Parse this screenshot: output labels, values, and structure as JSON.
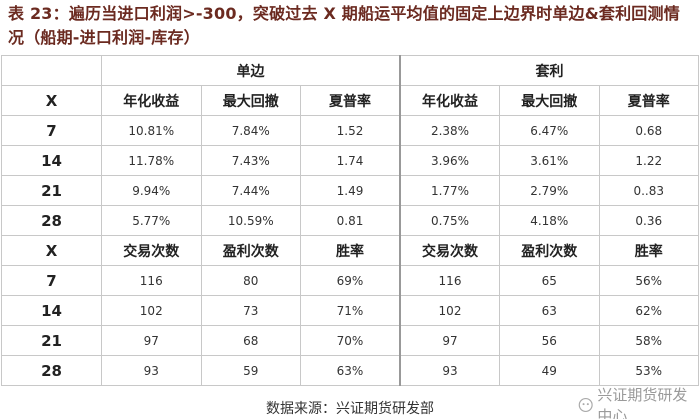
{
  "title": "表 23：遍历当进口利润>-300，突破过去 X 期船运平均值的固定上边界时单边&套利回测情况（船期-进口利润-库存）",
  "table": {
    "groups": [
      "单边",
      "套利"
    ],
    "sections": [
      {
        "header": [
          "X",
          "年化收益",
          "最大回撤",
          "夏普率",
          "年化收益",
          "最大回撤",
          "夏普率"
        ],
        "rows": [
          [
            "7",
            "10.81%",
            "7.84%",
            "1.52",
            "2.38%",
            "6.47%",
            "0.68"
          ],
          [
            "14",
            "11.78%",
            "7.43%",
            "1.74",
            "3.96%",
            "3.61%",
            "1.22"
          ],
          [
            "21",
            "9.94%",
            "7.44%",
            "1.49",
            "1.77%",
            "2.79%",
            "0..83"
          ],
          [
            "28",
            "5.77%",
            "10.59%",
            "0.81",
            "0.75%",
            "4.18%",
            "0.36"
          ]
        ]
      },
      {
        "header": [
          "X",
          "交易次数",
          "盈利次数",
          "胜率",
          "交易次数",
          "盈利次数",
          "胜率"
        ],
        "rows": [
          [
            "7",
            "116",
            "80",
            "69%",
            "116",
            "65",
            "56%"
          ],
          [
            "14",
            "102",
            "73",
            "71%",
            "102",
            "63",
            "62%"
          ],
          [
            "21",
            "97",
            "68",
            "70%",
            "97",
            "56",
            "58%"
          ],
          [
            "28",
            "93",
            "59",
            "63%",
            "93",
            "49",
            "53%"
          ]
        ]
      }
    ]
  },
  "source": "数据来源：兴证期货研发部",
  "watermark": "兴证期货研发中心"
}
